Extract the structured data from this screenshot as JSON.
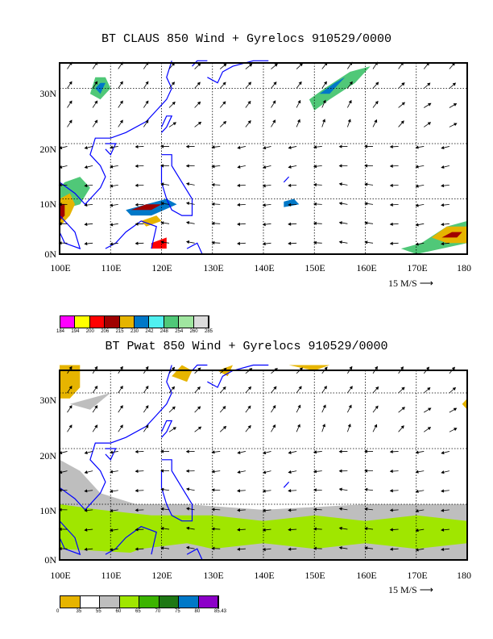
{
  "panels": [
    {
      "title": "BT CLAUS 850 Wind + Gyrelocs 910529/0000",
      "lat_labels": [
        "30N",
        "20N",
        "10N",
        "0N"
      ],
      "lon_labels": [
        "100E",
        "110E",
        "120E",
        "130E",
        "140E",
        "150E",
        "160E",
        "170E",
        "180"
      ],
      "ref_vector_label": "15 M/S",
      "colorbar": {
        "labels": [
          "184",
          "194",
          "200",
          "206",
          "215",
          "230",
          "242",
          "248",
          "254",
          "260",
          "285"
        ],
        "colors": [
          "#ff00ff",
          "#ffff00",
          "#ff0000",
          "#a00000",
          "#e6b400",
          "#0078c8",
          "#50f0f0",
          "#50c878",
          "#a0e6a0",
          "#dcdcdc"
        ]
      }
    },
    {
      "title": "BT Pwat 850 Wind + Gyrelocs 910529/0000",
      "lat_labels": [
        "30N",
        "20N",
        "10N",
        "0N"
      ],
      "lon_labels": [
        "100E",
        "110E",
        "120E",
        "130E",
        "140E",
        "150E",
        "160E",
        "170E",
        "180"
      ],
      "ref_vector_label": "15 M/S",
      "colorbar": {
        "labels": [
          "0",
          "35",
          "55",
          "60",
          "65",
          "70",
          "75",
          "80",
          "85.43"
        ],
        "colors": [
          "#e6b400",
          "#ffffff",
          "#bebebe",
          "#a0e600",
          "#3cb400",
          "#1e7814",
          "#0078c8",
          "#8c00c8"
        ]
      }
    }
  ],
  "colors": {
    "coastline": "#0000ff",
    "frame": "#000000",
    "grid": "#000000"
  }
}
